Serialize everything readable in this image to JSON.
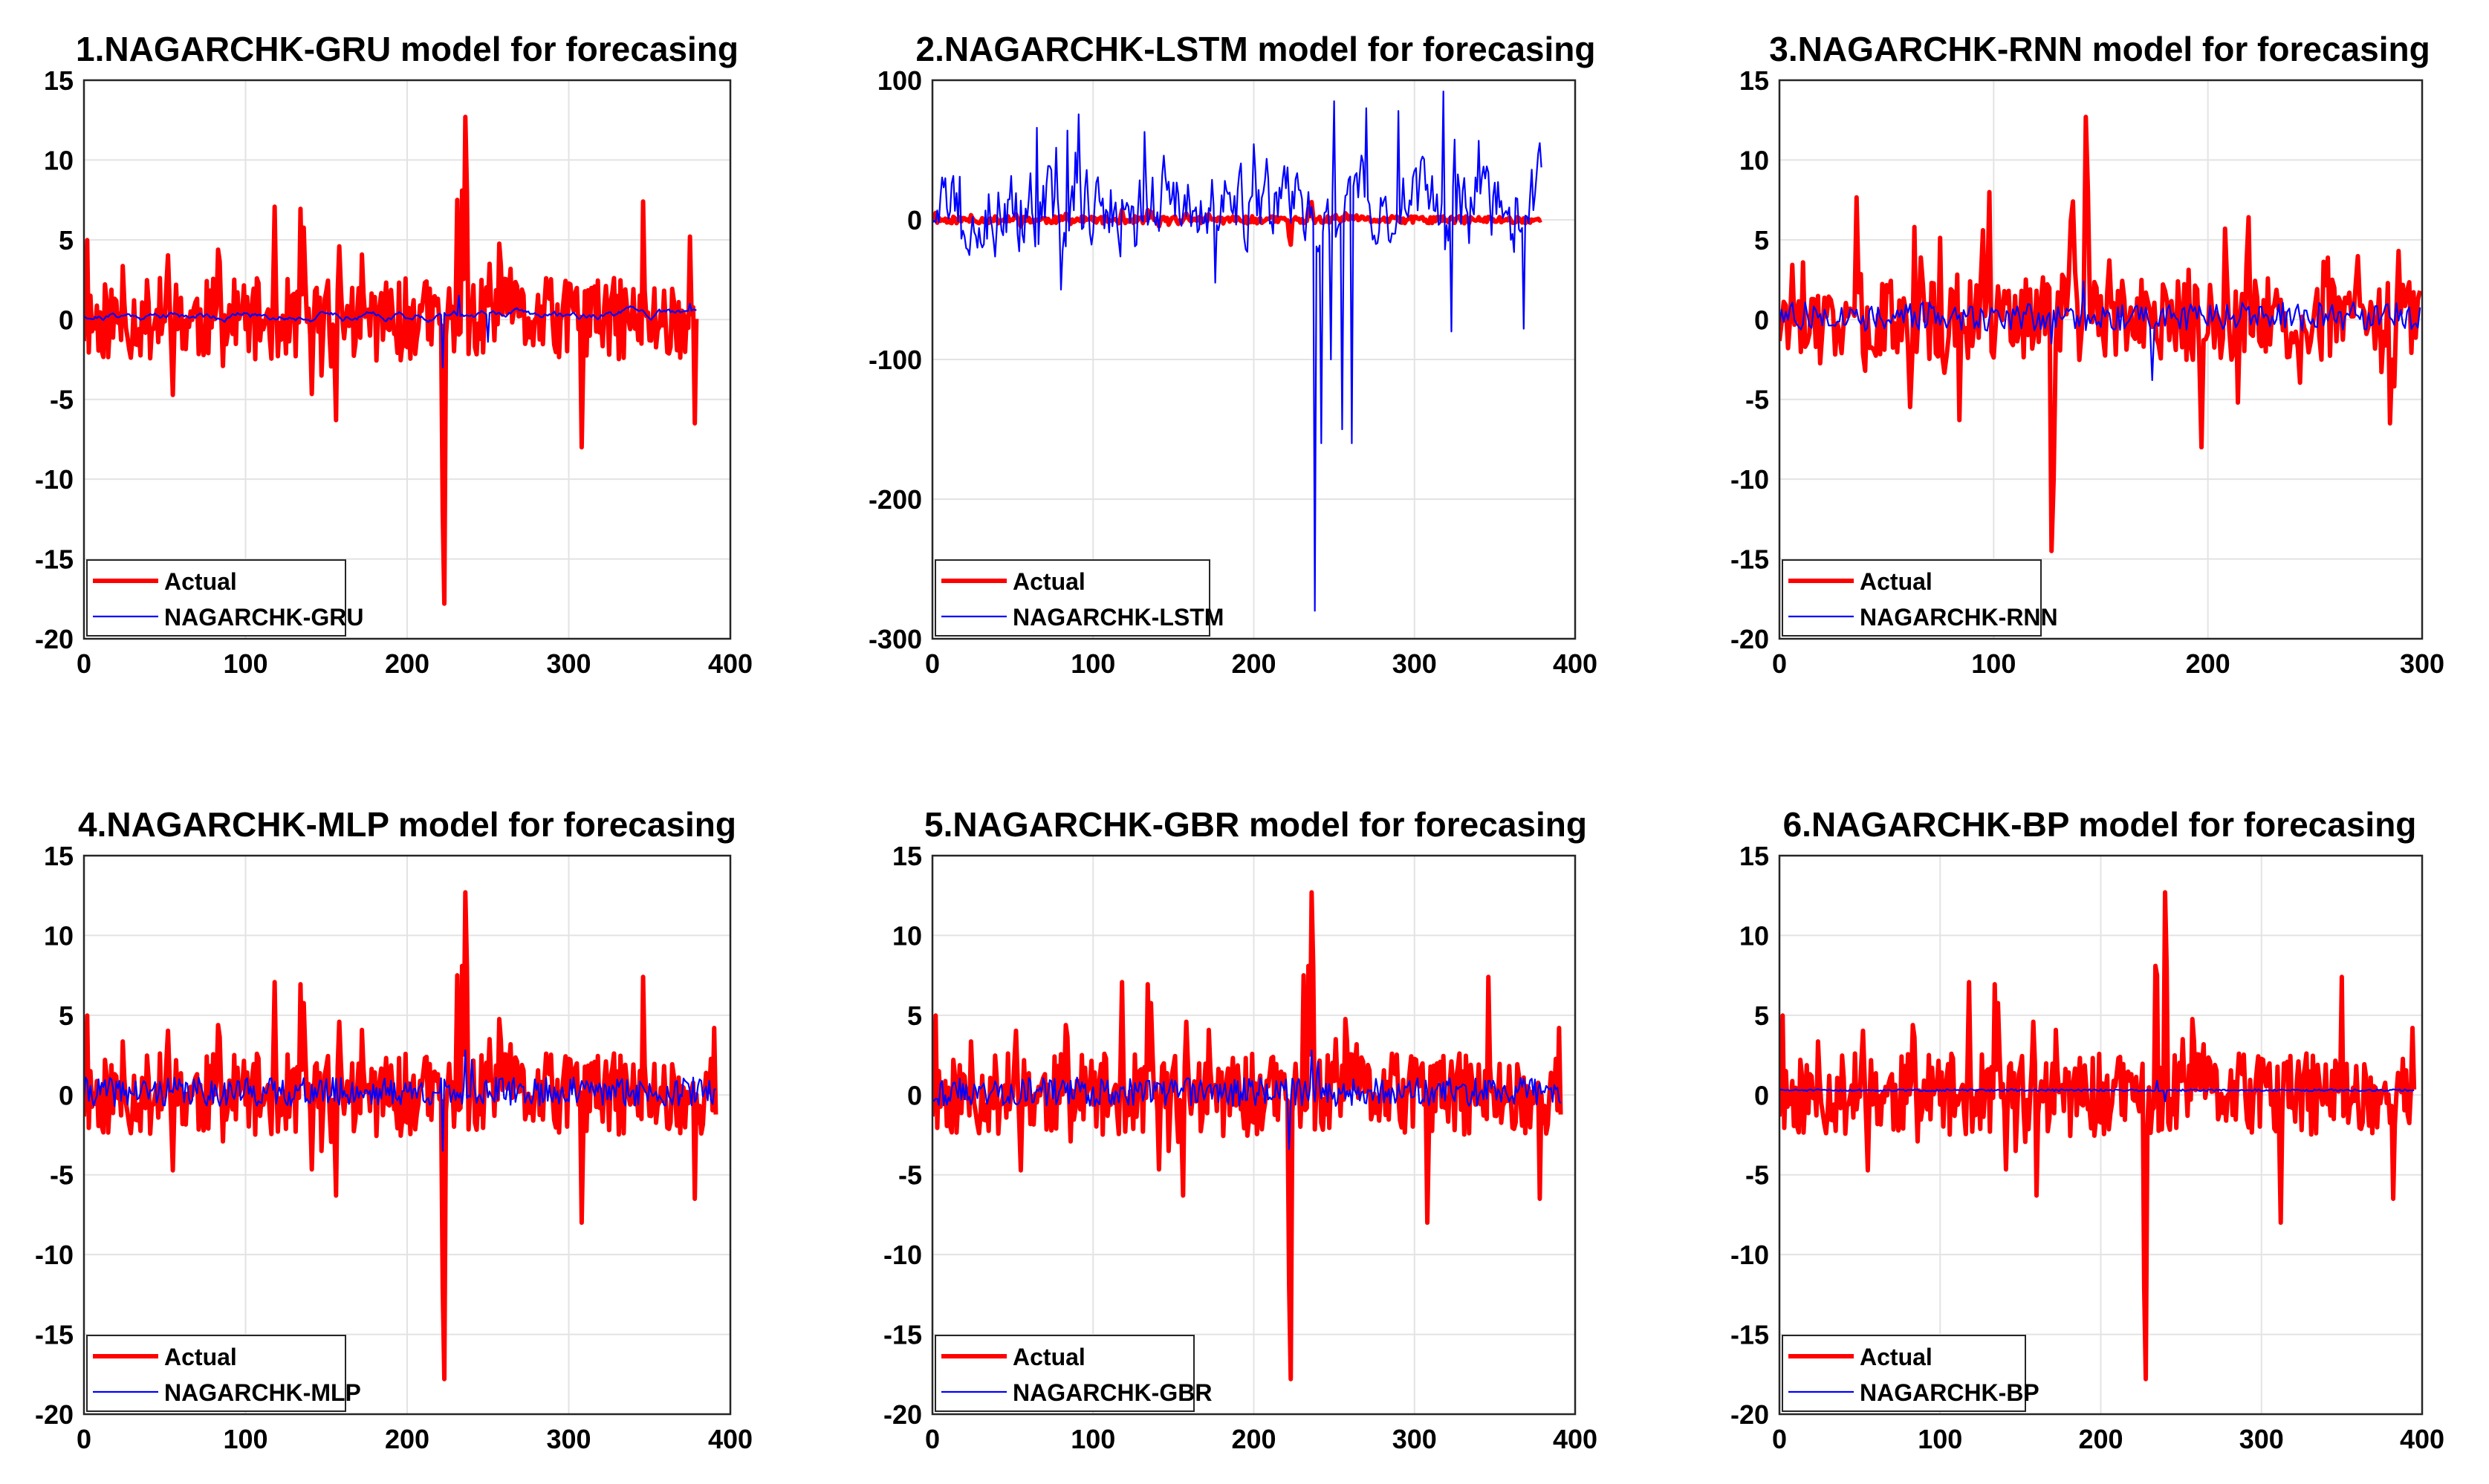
{
  "figure": {
    "description_id": "nagarchk-forecasting-grid"
  },
  "chart_data": [
    {
      "type": "line",
      "title": "1.NAGARCHK-GRU model for forecasing",
      "xlim": [
        0,
        400
      ],
      "ylim": [
        -20,
        15
      ],
      "xticks": [
        "0",
        "100",
        "200",
        "300",
        "400"
      ],
      "yticks": [
        "15",
        "10",
        "5",
        "0",
        "-5",
        "-10",
        "-15",
        "-20"
      ],
      "xtick_values": [
        0,
        100,
        200,
        300,
        400
      ],
      "ytick_values": [
        15,
        10,
        5,
        0,
        -5,
        -10,
        -15,
        -20
      ],
      "n": 380,
      "grid": true,
      "legend_position": "bottom-left",
      "series": [
        {
          "name": "Actual",
          "color": "#ff0000",
          "kind": "actual",
          "amp": 2.6,
          "seed": 11,
          "spikes": [
            [
              222,
              -12
            ],
            [
              223,
              -17.8
            ],
            [
              236,
              12.7
            ],
            [
              237,
              8
            ],
            [
              231,
              7.5
            ],
            [
              156,
              -6.3
            ],
            [
              308,
              -8
            ],
            [
              346,
              7.4
            ],
            [
              378,
              -6.5
            ],
            [
              375,
              5.2
            ]
          ]
        },
        {
          "name": "NAGARCHK-GRU",
          "color": "#0000ff",
          "kind": "smooth",
          "amp": 0.3,
          "bias": 0.3,
          "seed": 21,
          "spikes": [
            [
              222,
              -3
            ],
            [
              232,
              1.5
            ],
            [
              250,
              -1.4
            ],
            [
              375,
              1
            ]
          ]
        }
      ]
    },
    {
      "type": "line",
      "title": "2.NAGARCHK-LSTM model for forecasing",
      "xlim": [
        0,
        400
      ],
      "ylim": [
        -300,
        100
      ],
      "xticks": [
        "0",
        "100",
        "200",
        "300",
        "400"
      ],
      "yticks": [
        "100",
        "0",
        "-100",
        "-200",
        "-300"
      ],
      "xtick_values": [
        0,
        100,
        200,
        300,
        400
      ],
      "ytick_values": [
        100,
        0,
        -100,
        -200,
        -300
      ],
      "n": 380,
      "grid": true,
      "legend_position": "bottom-left",
      "series": [
        {
          "name": "Actual",
          "color": "#ff0000",
          "kind": "actual",
          "amp": 2.6,
          "seed": 11,
          "spikes": [
            [
              222,
              -12
            ],
            [
              223,
              -17.8
            ],
            [
              236,
              12.7
            ]
          ]
        },
        {
          "name": "NAGARCHK-LSTM",
          "color": "#0000ff",
          "kind": "wild",
          "amp": 30,
          "bias": 10,
          "seed": 33,
          "spikes": [
            [
              238,
              -280
            ],
            [
              242,
              -160
            ],
            [
              248,
              -100
            ],
            [
              255,
              -150
            ],
            [
              261,
              -160
            ],
            [
              250,
              85
            ],
            [
              270,
              80
            ],
            [
              290,
              78
            ],
            [
              318,
              92
            ],
            [
              323,
              -80
            ],
            [
              368,
              -78
            ],
            [
              378,
              55
            ],
            [
              80,
              -50
            ],
            [
              176,
              -45
            ],
            [
              65,
              66
            ],
            [
              84,
              64
            ],
            [
              132,
              63
            ]
          ]
        }
      ]
    },
    {
      "type": "line",
      "title": "3.NAGARCHK-RNN model for forecasing",
      "xlim": [
        0,
        300
      ],
      "ylim": [
        -20,
        15
      ],
      "xticks": [
        "0",
        "100",
        "200",
        "300"
      ],
      "yticks": [
        "15",
        "10",
        "5",
        "0",
        "-5",
        "-10",
        "-15",
        "-20"
      ],
      "xtick_values": [
        0,
        100,
        200,
        300
      ],
      "ytick_values": [
        15,
        10,
        5,
        0,
        -5,
        -10,
        -15,
        -20
      ],
      "n": 300,
      "grid": true,
      "legend_position": "bottom-left",
      "series": [
        {
          "name": "Actual",
          "color": "#ff0000",
          "kind": "actual",
          "amp": 2.6,
          "seed": 17,
          "spikes": [
            [
              127,
              -14.5
            ],
            [
              128,
              -10
            ],
            [
              143,
              12.7
            ],
            [
              144,
              8
            ],
            [
              137,
              7.4
            ],
            [
              63,
              5.8
            ],
            [
              84,
              -6.3
            ],
            [
              95,
              5.6
            ],
            [
              197,
              -8
            ],
            [
              208,
              5.7
            ],
            [
              285,
              -6.5
            ],
            [
              289,
              4.3
            ]
          ]
        },
        {
          "name": "NAGARCHK-RNN",
          "color": "#0000ff",
          "kind": "noisy",
          "amp": 0.9,
          "bias": 0.2,
          "seed": 27,
          "spikes": [
            [
              174,
              -3.8
            ],
            [
              142,
              2.4
            ],
            [
              127,
              -1.5
            ]
          ]
        }
      ]
    },
    {
      "type": "line",
      "title": "4.NAGARCHK-MLP model for forecasing",
      "xlim": [
        0,
        400
      ],
      "ylim": [
        -20,
        15
      ],
      "xticks": [
        "0",
        "100",
        "200",
        "300",
        "400"
      ],
      "yticks": [
        "15",
        "10",
        "5",
        "0",
        "-5",
        "-10",
        "-15",
        "-20"
      ],
      "xtick_values": [
        0,
        100,
        200,
        300,
        400
      ],
      "ytick_values": [
        15,
        10,
        5,
        0,
        -5,
        -10,
        -15,
        -20
      ],
      "n": 392,
      "grid": true,
      "legend_position": "bottom-left",
      "series": [
        {
          "name": "Actual",
          "color": "#ff0000",
          "kind": "actual",
          "amp": 2.6,
          "seed": 11,
          "spikes": [
            [
              222,
              -12
            ],
            [
              223,
              -17.8
            ],
            [
              236,
              12.7
            ],
            [
              237,
              8
            ],
            [
              231,
              7.5
            ],
            [
              156,
              -6.3
            ],
            [
              308,
              -8
            ],
            [
              346,
              7.4
            ],
            [
              378,
              -6.5
            ],
            [
              390,
              4.2
            ]
          ]
        },
        {
          "name": "NAGARCHK-MLP",
          "color": "#0000ff",
          "kind": "noisy",
          "amp": 0.9,
          "bias": 0.2,
          "seed": 41,
          "spikes": [
            [
              222,
              -3.5
            ],
            [
              236,
              2.8
            ],
            [
              240,
              2.2
            ]
          ]
        }
      ]
    },
    {
      "type": "line",
      "title": "5.NAGARCHK-GBR model for forecasing",
      "xlim": [
        0,
        400
      ],
      "ylim": [
        -20,
        15
      ],
      "xticks": [
        "0",
        "100",
        "200",
        "300",
        "400"
      ],
      "yticks": [
        "15",
        "10",
        "5",
        "0",
        "-5",
        "-10",
        "-15",
        "-20"
      ],
      "xtick_values": [
        0,
        100,
        200,
        300,
        400
      ],
      "ytick_values": [
        15,
        10,
        5,
        0,
        -5,
        -10,
        -15,
        -20
      ],
      "n": 392,
      "grid": true,
      "legend_position": "bottom-left",
      "series": [
        {
          "name": "Actual",
          "color": "#ff0000",
          "kind": "actual",
          "amp": 2.6,
          "seed": 11,
          "spikes": [
            [
              222,
              -12
            ],
            [
              223,
              -17.8
            ],
            [
              236,
              12.7
            ],
            [
              237,
              8
            ],
            [
              231,
              7.5
            ],
            [
              156,
              -6.3
            ],
            [
              308,
              -8
            ],
            [
              346,
              7.4
            ],
            [
              378,
              -6.5
            ],
            [
              390,
              4.2
            ]
          ]
        },
        {
          "name": "NAGARCHK-GBR",
          "color": "#0000ff",
          "kind": "noisy",
          "amp": 0.9,
          "bias": 0.2,
          "seed": 43,
          "spikes": [
            [
              222,
              -3.4
            ],
            [
              236,
              2.8
            ],
            [
              240,
              2.1
            ]
          ]
        }
      ]
    },
    {
      "type": "line",
      "title": "6.NAGARCHK-BP model for forecasing",
      "xlim": [
        0,
        400
      ],
      "ylim": [
        -20,
        15
      ],
      "xticks": [
        "0",
        "100",
        "200",
        "300",
        "400"
      ],
      "yticks": [
        "15",
        "10",
        "5",
        "0",
        "-5",
        "-10",
        "-15",
        "-20"
      ],
      "xtick_values": [
        0,
        100,
        200,
        300,
        400
      ],
      "ytick_values": [
        15,
        10,
        5,
        0,
        -5,
        -10,
        -15,
        -20
      ],
      "n": 396,
      "grid": true,
      "legend_position": "bottom-left",
      "series": [
        {
          "name": "Actual",
          "color": "#ff0000",
          "kind": "actual",
          "amp": 2.6,
          "seed": 11,
          "spikes": [
            [
              227,
              -12
            ],
            [
              228,
              -17.8
            ],
            [
              240,
              12.7
            ],
            [
              241,
              8
            ],
            [
              235,
              7.5
            ],
            [
              160,
              -6.3
            ],
            [
              312,
              -8
            ],
            [
              350,
              7.4
            ],
            [
              382,
              -6.5
            ],
            [
              394,
              4.2
            ]
          ]
        },
        {
          "name": "NAGARCHK-BP",
          "color": "#0000ff",
          "kind": "flat",
          "amp": 0.06,
          "bias": 0.3,
          "seed": 51,
          "spikes": [
            [
              235,
              0.9
            ],
            [
              240,
              -0.4
            ]
          ]
        }
      ]
    }
  ]
}
